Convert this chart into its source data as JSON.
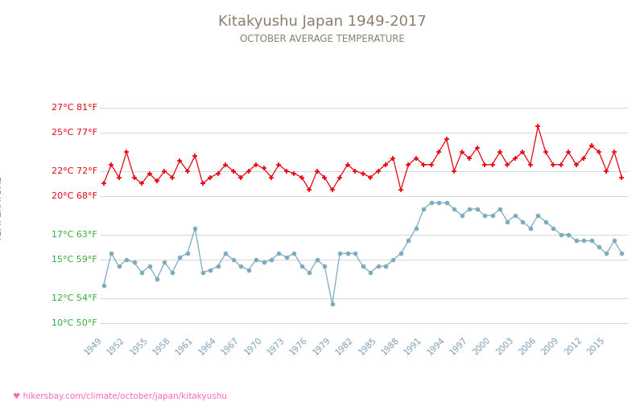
{
  "title": "Kitakyushu Japan 1949-2017",
  "subtitle": "OCTOBER AVERAGE TEMPERATURE",
  "ylabel": "TEMPERATURE",
  "url_text": "♥ hikersbay.com/climate/october/japan/kitakyushu",
  "title_color": "#8B7D6B",
  "subtitle_color": "#8B7D6B",
  "ylabel_color": "#8B7D6B",
  "background_color": "#ffffff",
  "grid_color": "#d0d8e0",
  "years": [
    1949,
    1950,
    1951,
    1952,
    1953,
    1954,
    1955,
    1956,
    1957,
    1958,
    1959,
    1960,
    1961,
    1962,
    1963,
    1964,
    1965,
    1966,
    1967,
    1968,
    1969,
    1970,
    1971,
    1972,
    1973,
    1974,
    1975,
    1976,
    1977,
    1978,
    1979,
    1980,
    1981,
    1982,
    1983,
    1984,
    1985,
    1986,
    1987,
    1988,
    1989,
    1990,
    1991,
    1992,
    1993,
    1994,
    1995,
    1996,
    1997,
    1998,
    1999,
    2000,
    2001,
    2002,
    2003,
    2004,
    2005,
    2006,
    2007,
    2008,
    2009,
    2010,
    2011,
    2012,
    2013,
    2014,
    2015,
    2016,
    2017
  ],
  "day_temps": [
    21.0,
    22.5,
    21.5,
    23.5,
    21.5,
    21.0,
    21.8,
    21.2,
    22.0,
    21.5,
    22.8,
    22.0,
    23.2,
    21.0,
    21.5,
    21.8,
    22.5,
    22.0,
    21.5,
    22.0,
    22.5,
    22.2,
    21.5,
    22.5,
    22.0,
    21.8,
    21.5,
    20.5,
    22.0,
    21.5,
    20.5,
    21.5,
    22.5,
    22.0,
    21.8,
    21.5,
    22.0,
    22.5,
    23.0,
    20.5,
    22.5,
    23.0,
    22.5,
    22.5,
    23.5,
    24.5,
    22.0,
    23.5,
    23.0,
    23.8,
    22.5,
    22.5,
    23.5,
    22.5,
    23.0,
    23.5,
    22.5,
    25.5,
    23.5,
    22.5,
    22.5,
    23.5,
    22.5,
    23.0,
    24.0,
    23.5,
    22.0,
    23.5,
    21.5
  ],
  "night_temps": [
    13.0,
    15.5,
    14.5,
    15.0,
    14.8,
    14.0,
    14.5,
    13.5,
    14.8,
    14.0,
    15.2,
    15.5,
    17.5,
    14.0,
    14.2,
    14.5,
    15.5,
    15.0,
    14.5,
    14.2,
    15.0,
    14.8,
    15.0,
    15.5,
    15.2,
    15.5,
    14.5,
    14.0,
    15.0,
    14.5,
    11.5,
    15.5,
    15.5,
    15.5,
    14.5,
    14.0,
    14.5,
    14.5,
    15.0,
    15.5,
    16.5,
    17.5,
    19.0,
    19.5,
    19.5,
    19.5,
    19.0,
    18.5,
    19.0,
    19.0,
    18.5,
    18.5,
    19.0,
    18.0,
    18.5,
    18.0,
    17.5,
    18.5,
    18.0,
    17.5,
    17.0,
    17.0,
    16.5,
    16.5,
    16.5,
    16.0,
    15.5,
    16.5,
    15.5
  ],
  "day_color": "#e8000d",
  "night_color": "#7baabe",
  "yticks_c": [
    10,
    12,
    15,
    17,
    20,
    22,
    25,
    27
  ],
  "yticks_f": [
    50,
    54,
    59,
    63,
    68,
    72,
    77,
    81
  ],
  "ytick_color_high": "#e8000d",
  "ytick_color_low": "#33aa33",
  "xtick_years": [
    1949,
    1952,
    1955,
    1958,
    1961,
    1964,
    1967,
    1970,
    1973,
    1976,
    1979,
    1982,
    1985,
    1988,
    1991,
    1994,
    1997,
    2000,
    2003,
    2006,
    2009,
    2012,
    2015
  ],
  "ylim": [
    9.5,
    28.5
  ],
  "xlim_start": 1948.5,
  "xlim_end": 2017.8
}
